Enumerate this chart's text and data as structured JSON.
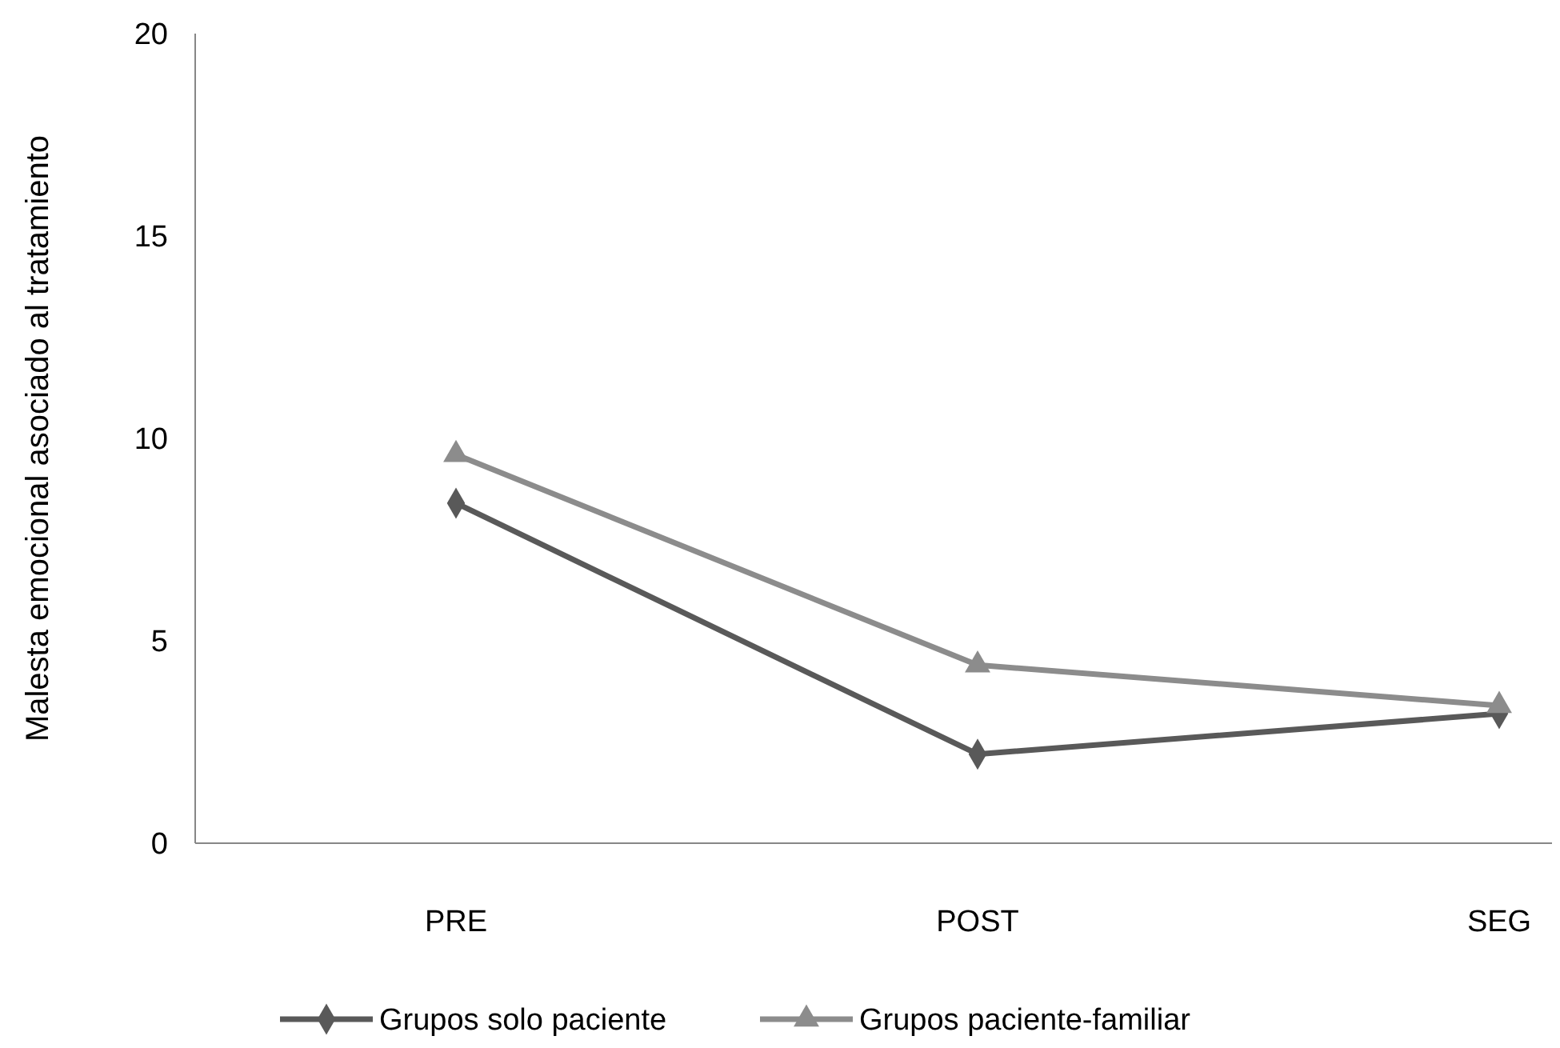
{
  "chart_data": {
    "type": "line",
    "ylabel": "Malesta emocional asociado al tratamiento",
    "categories": [
      "PRE",
      "POST",
      "SEG"
    ],
    "series": [
      {
        "name": "Grupos solo paciente",
        "color": "#595959",
        "values": [
          8.4,
          2.2,
          3.2
        ],
        "marker": "diamond"
      },
      {
        "name": "Grupos paciente-familiar",
        "color": "#8c8c8c",
        "values": [
          9.6,
          4.4,
          3.4
        ],
        "marker": "triangle"
      }
    ],
    "ylim": [
      0,
      20
    ],
    "yticks": [
      0,
      5,
      10,
      15,
      20
    ],
    "grid": false,
    "legend": "bottom"
  }
}
